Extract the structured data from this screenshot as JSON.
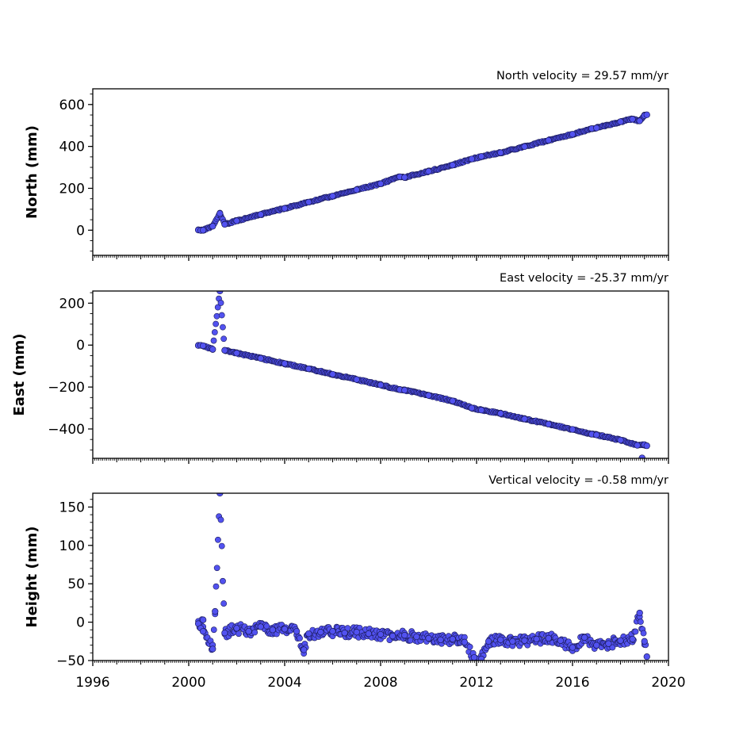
{
  "colors": {
    "marker_fill": "#5252f0",
    "marker_edge": "#1a1a5a",
    "axes": "#000000"
  },
  "chart_data": [
    {
      "type": "scatter",
      "title": "North velocity = 29.57 mm/yr",
      "xlabel": "",
      "ylabel": "North (mm)",
      "xlim": [
        1996,
        2020
      ],
      "ylim": [
        -120,
        675
      ],
      "yticks": [
        "0",
        "200",
        "400",
        "600"
      ],
      "xticks": [],
      "grid": false,
      "series": [
        {
          "points": [
            [
              2000.4,
              1
            ],
            [
              2000.5,
              -1
            ],
            [
              2000.6,
              0
            ],
            [
              2001.0,
              19
            ],
            [
              2001.3,
              80
            ],
            [
              2001.5,
              28
            ],
            [
              2002.0,
              45
            ],
            [
              2003.0,
              75
            ],
            [
              2004.0,
              104
            ],
            [
              2005.0,
              134
            ],
            [
              2006.0,
              163
            ],
            [
              2007.0,
              193
            ],
            [
              2008.0,
              222
            ],
            [
              2008.8,
              255
            ],
            [
              2009.0,
              252
            ],
            [
              2010.0,
              281
            ],
            [
              2011.0,
              311
            ],
            [
              2011.8,
              340
            ],
            [
              2012.2,
              352
            ],
            [
              2013.0,
              370
            ],
            [
              2014.0,
              399
            ],
            [
              2015.0,
              429
            ],
            [
              2016.0,
              458
            ],
            [
              2016.8,
              485
            ],
            [
              2017.0,
              488
            ],
            [
              2018.0,
              518
            ],
            [
              2018.5,
              530
            ],
            [
              2018.8,
              522
            ],
            [
              2019.0,
              547
            ],
            [
              2019.1,
              551
            ]
          ]
        }
      ]
    },
    {
      "type": "scatter",
      "title": "East velocity = -25.37 mm/yr",
      "xlabel": "",
      "ylabel": "East (mm)",
      "xlim": [
        1996,
        2020
      ],
      "ylim": [
        -540,
        258
      ],
      "yticks": [
        "200",
        "0",
        "−200",
        "−400"
      ],
      "xticks": [],
      "grid": false,
      "series": [
        {
          "points": [
            [
              2000.4,
              -2
            ],
            [
              2000.5,
              -1
            ],
            [
              2000.6,
              -3
            ],
            [
              2001.0,
              -20
            ],
            [
              2001.3,
              258
            ],
            [
              2001.5,
              -25
            ],
            [
              2002.0,
              -38
            ],
            [
              2003.0,
              -63
            ],
            [
              2004.0,
              -88
            ],
            [
              2005.0,
              -113
            ],
            [
              2006.0,
              -139
            ],
            [
              2007.0,
              -164
            ],
            [
              2008.0,
              -190
            ],
            [
              2008.8,
              -212
            ],
            [
              2009.0,
              -215
            ],
            [
              2010.0,
              -240
            ],
            [
              2011.0,
              -266
            ],
            [
              2011.8,
              -300
            ],
            [
              2012.2,
              -310
            ],
            [
              2013.0,
              -326
            ],
            [
              2014.0,
              -352
            ],
            [
              2015.0,
              -377
            ],
            [
              2016.0,
              -402
            ],
            [
              2016.8,
              -425
            ],
            [
              2017.0,
              -428
            ],
            [
              2018.0,
              -453
            ],
            [
              2018.7,
              -478
            ],
            [
              2019.0,
              -475
            ],
            [
              2019.1,
              -480
            ],
            [
              2018.9,
              -538
            ]
          ]
        }
      ]
    },
    {
      "type": "scatter",
      "title": "Vertical velocity = -0.58 mm/yr",
      "xlabel": "",
      "ylabel": "Height (mm)",
      "xlim": [
        1996,
        2020
      ],
      "ylim": [
        -50,
        168
      ],
      "yticks": [
        "150",
        "100",
        "50",
        "0",
        "−50"
      ],
      "xticks": [
        "1996",
        "2000",
        "2004",
        "2008",
        "2012",
        "2016",
        "2020"
      ],
      "grid": false,
      "series": [
        {
          "points": [
            [
              2000.4,
              -2
            ],
            [
              2000.5,
              -8
            ],
            [
              2000.6,
              3
            ],
            [
              2000.6,
              -12
            ],
            [
              2001.0,
              -35
            ],
            [
              2001.1,
              14
            ],
            [
              2001.3,
              168
            ],
            [
              2001.5,
              -14
            ],
            [
              2002.0,
              -8
            ],
            [
              2002.5,
              -12
            ],
            [
              2003.0,
              -6
            ],
            [
              2003.5,
              -10
            ],
            [
              2004.0,
              -9
            ],
            [
              2004.5,
              -12
            ],
            [
              2004.8,
              -36
            ],
            [
              2005.0,
              -15
            ],
            [
              2005.5,
              -13
            ],
            [
              2006.0,
              -12
            ],
            [
              2006.5,
              -14
            ],
            [
              2007.0,
              -13
            ],
            [
              2007.5,
              -15
            ],
            [
              2008.0,
              -16
            ],
            [
              2008.5,
              -18
            ],
            [
              2009.0,
              -17
            ],
            [
              2009.5,
              -19
            ],
            [
              2010.0,
              -21
            ],
            [
              2010.5,
              -23
            ],
            [
              2011.0,
              -22
            ],
            [
              2011.5,
              -26
            ],
            [
              2011.9,
              -46
            ],
            [
              2012.2,
              -48
            ],
            [
              2012.5,
              -25
            ],
            [
              2013.0,
              -23
            ],
            [
              2013.5,
              -25
            ],
            [
              2014.0,
              -24
            ],
            [
              2014.5,
              -22
            ],
            [
              2015.0,
              -21
            ],
            [
              2015.5,
              -24
            ],
            [
              2016.0,
              -33
            ],
            [
              2016.5,
              -20
            ],
            [
              2017.0,
              -30
            ],
            [
              2017.5,
              -28
            ],
            [
              2018.0,
              -24
            ],
            [
              2018.5,
              -22
            ],
            [
              2018.8,
              12
            ],
            [
              2019.0,
              -25
            ],
            [
              2019.1,
              -45
            ]
          ]
        }
      ]
    }
  ]
}
